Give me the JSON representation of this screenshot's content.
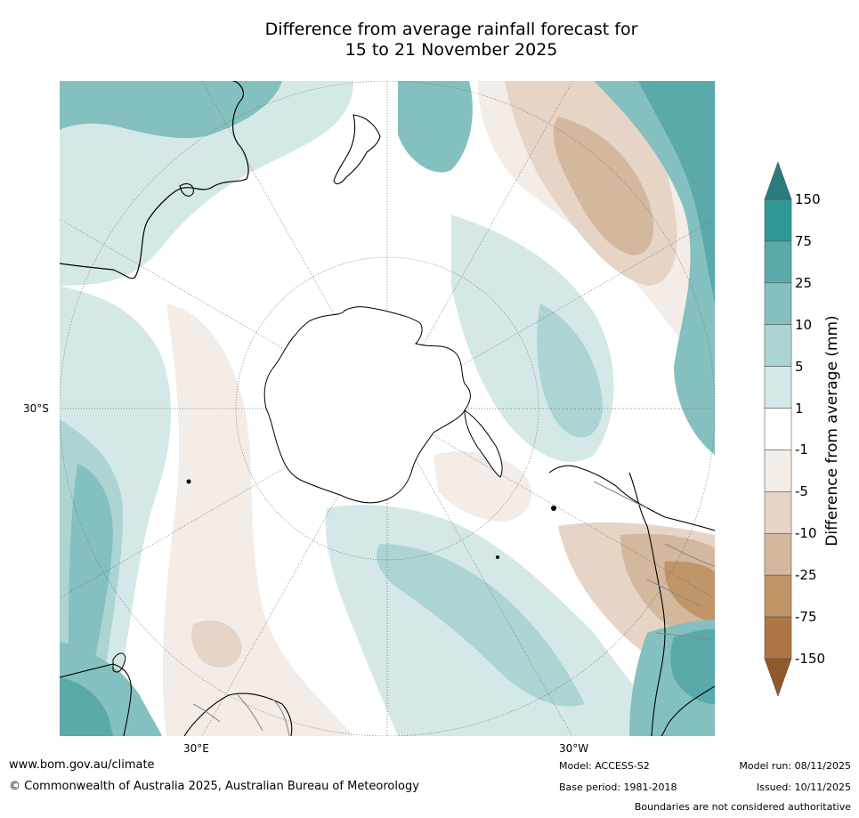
{
  "title": {
    "line1": "Difference from average rainfall forecast for",
    "line2": "15 to 21 November 2025"
  },
  "map": {
    "projection": "south-polar-stereographic",
    "background_color": "#ffffff",
    "coastline_color": "#000000",
    "boundary_color": "#888888",
    "graticule_color": "#666666",
    "lat_label": "30°S",
    "lon_labels": {
      "east": "30°E",
      "west": "30°W"
    }
  },
  "legend": {
    "title": "Difference from average (mm)",
    "tick_labels": [
      "150",
      "75",
      "25",
      "10",
      "5",
      "1",
      "-1",
      "-5",
      "-10",
      "-25",
      "-75",
      "-150"
    ],
    "band_colors": [
      "#2b7c7c",
      "#2f9a96",
      "#59aaa9",
      "#84c0bf",
      "#acd4d3",
      "#d4e8e7",
      "#ffffff",
      "#f3ece7",
      "#e6d5c6",
      "#d4b89d",
      "#c09567",
      "#ae7645",
      "#8f5a28"
    ]
  },
  "footer": {
    "website": "www.bom.gov.au/climate",
    "copyright": "© Commonwealth of Australia 2025, Australian Bureau of Meteorology",
    "model": "Model: ACCESS-S2",
    "base_period": "Base period: 1981-2018",
    "model_run": "Model run: 08/11/2025",
    "issued": "Issued: 10/11/2025",
    "disclaimer": "Boundaries are not considered authoritative"
  }
}
